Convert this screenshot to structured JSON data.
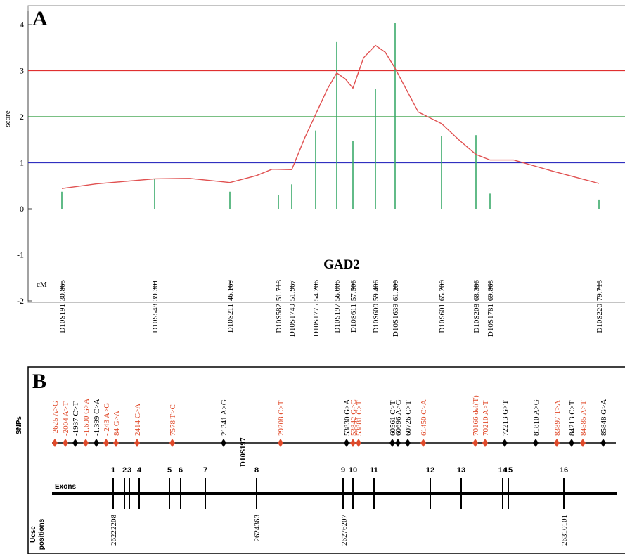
{
  "panelA": {
    "letter": "A",
    "ylabel": "score",
    "y_ticks": [
      "4",
      "3",
      "2",
      "1",
      "0",
      "-1",
      "-2"
    ],
    "gene": "GAD2",
    "cm_label": "cM",
    "threshold_colors": {
      "3": "#e03030",
      "2": "#2a9a3a",
      "1": "#3030c0"
    }
  },
  "chart_data": {
    "type": "line",
    "title": "",
    "ylabel": "score",
    "ylim": [
      -2,
      4.3
    ],
    "grid": false,
    "thresholds": [
      {
        "value": 3,
        "color": "#e03030"
      },
      {
        "value": 2,
        "color": "#2a9a3a"
      },
      {
        "value": 1,
        "color": "#3030c0"
      }
    ],
    "markers": [
      {
        "name": "D10S191",
        "cm": "30.865",
        "bar": 0.37
      },
      {
        "name": "D10S548",
        "cm": "39.301",
        "bar": 0.65
      },
      {
        "name": "D10S211",
        "cm": "46.169",
        "bar": 0.37
      },
      {
        "name": "D10S582",
        "cm": "51.718",
        "bar": 0.3
      },
      {
        "name": "D10S1749",
        "cm": "51.967",
        "bar": 0.53
      },
      {
        "name": "D10S1775",
        "cm": "54.206",
        "bar": 1.7
      },
      {
        "name": "D10S197",
        "cm": "56.006",
        "bar": 3.62
      },
      {
        "name": "D10S611",
        "cm": "57.506",
        "bar": 1.48
      },
      {
        "name": "D10S600",
        "cm": "59.406",
        "bar": 2.6
      },
      {
        "name": "D10S1639",
        "cm": "61.200",
        "bar": 4.03
      },
      {
        "name": "D10S601",
        "cm": "65.200",
        "bar": 1.58
      },
      {
        "name": "D10S208",
        "cm": "68.386",
        "bar": 1.6
      },
      {
        "name": "D10S1781",
        "cm": "69.868",
        "bar": 0.33
      },
      {
        "name": "D10S220",
        "cm": "79.713",
        "bar": 0.2
      }
    ],
    "curve_color": "#e05050",
    "bar_color": "#3aaa6a",
    "curve": [
      {
        "cm": 30.865,
        "y": 0.44
      },
      {
        "cm": 34.0,
        "y": 0.54
      },
      {
        "cm": 39.301,
        "y": 0.65
      },
      {
        "cm": 42.5,
        "y": 0.66
      },
      {
        "cm": 46.169,
        "y": 0.57
      },
      {
        "cm": 49.2,
        "y": 0.72
      },
      {
        "cm": 51.0,
        "y": 0.86
      },
      {
        "cm": 51.967,
        "y": 0.85
      },
      {
        "cm": 53.2,
        "y": 1.55
      },
      {
        "cm": 54.206,
        "y": 2.05
      },
      {
        "cm": 55.2,
        "y": 2.6
      },
      {
        "cm": 56.006,
        "y": 2.95
      },
      {
        "cm": 56.8,
        "y": 2.82
      },
      {
        "cm": 57.506,
        "y": 2.62
      },
      {
        "cm": 58.4,
        "y": 3.28
      },
      {
        "cm": 59.406,
        "y": 3.55
      },
      {
        "cm": 60.3,
        "y": 3.4
      },
      {
        "cm": 61.2,
        "y": 3.05
      },
      {
        "cm": 63.2,
        "y": 2.1
      },
      {
        "cm": 65.2,
        "y": 1.85
      },
      {
        "cm": 66.9,
        "y": 1.48
      },
      {
        "cm": 68.386,
        "y": 1.18
      },
      {
        "cm": 69.868,
        "y": 1.06
      },
      {
        "cm": 72.0,
        "y": 1.06
      },
      {
        "cm": 75.5,
        "y": 0.82
      },
      {
        "cm": 79.713,
        "y": 0.55
      }
    ]
  },
  "panelB": {
    "letter": "B",
    "snps_label": "SNPs",
    "exons_label": "Exons",
    "ucsc_label_1": "Ucsc",
    "ucsc_label_2": "positions",
    "marker_label": "D10S197",
    "snp_red": "#e04a2a",
    "snp_black": "#000000",
    "snps": [
      {
        "label": "-2625 A>G",
        "color": "red"
      },
      {
        "label": "-2004 A>T",
        "color": "red"
      },
      {
        "label": "-1937 C>T",
        "color": "black"
      },
      {
        "label": "-1.600 G>A",
        "color": "red"
      },
      {
        "label": "-1.399 C>A",
        "color": "black"
      },
      {
        "label": "- 243 A>G",
        "color": "red"
      },
      {
        "label": "84 G>A",
        "color": "red"
      },
      {
        "label": "2414 C>A",
        "color": "red"
      },
      {
        "label": "7578 T>C",
        "color": "red"
      },
      {
        "label": "21341 A>G",
        "color": "black"
      },
      {
        "label": "29208 C>T",
        "color": "red"
      },
      {
        "label": "53830 G>A",
        "color": "black"
      },
      {
        "label": "53842 G>C",
        "color": "red"
      },
      {
        "label": "53881 C>T",
        "color": "red"
      },
      {
        "label": "60561 C>T",
        "color": "black"
      },
      {
        "label": "60696 A>G",
        "color": "black"
      },
      {
        "label": "60726 C>T",
        "color": "black"
      },
      {
        "label": "61450 C>A",
        "color": "red"
      },
      {
        "label": "70166 del(T)",
        "color": "red"
      },
      {
        "label": "70210 A>T",
        "color": "red"
      },
      {
        "label": "72213 G>T",
        "color": "black"
      },
      {
        "label": "81810 A>G",
        "color": "black"
      },
      {
        "label": "83897 T>A",
        "color": "red"
      },
      {
        "label": "84213 C>T",
        "color": "black"
      },
      {
        "label": "84585 A>T",
        "color": "red"
      },
      {
        "label": "85848 G>A",
        "color": "black"
      }
    ],
    "exons": [
      "1",
      "2",
      "3",
      "4",
      "5",
      "6",
      "7",
      "8",
      "9",
      "10",
      "11",
      "12",
      "13",
      "14",
      "15",
      "16"
    ],
    "ucsc_positions": [
      "26222208",
      "2624363",
      "26276207",
      "26310101"
    ]
  }
}
